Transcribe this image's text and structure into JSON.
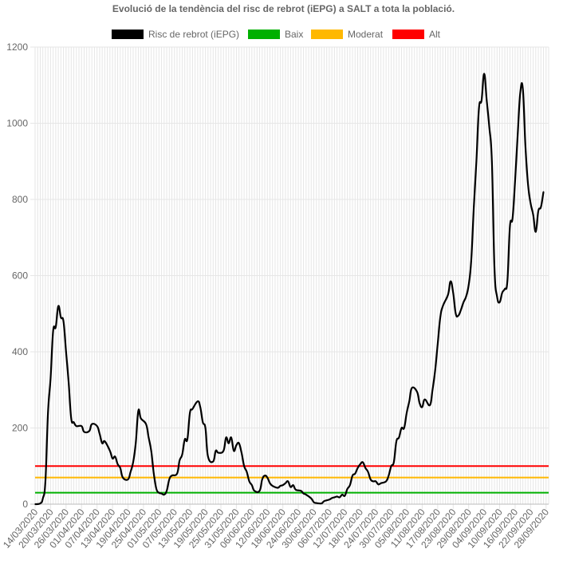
{
  "chart_data": {
    "type": "line",
    "title": "Evolució de la tendència del risc de rebrot (iEPG) a SALT a tota la població.",
    "xlabel": "",
    "ylabel": "",
    "ylim": [
      0,
      1200
    ],
    "yticks": [
      0,
      200,
      400,
      600,
      800,
      1000,
      1200
    ],
    "grid": true,
    "legend_position": "top",
    "start_date": "2020-03-14",
    "x_tick_labels": [
      "14/03/2020",
      "20/03/2020",
      "26/03/2020",
      "01/04/2020",
      "07/04/2020",
      "13/04/2020",
      "19/04/2020",
      "25/04/2020",
      "01/05/2020",
      "07/05/2020",
      "13/05/2020",
      "19/05/2020",
      "25/05/2020",
      "31/05/2020",
      "06/06/2020",
      "12/06/2020",
      "18/06/2020",
      "24/06/2020",
      "30/06/2020",
      "06/07/2020",
      "12/07/2020",
      "18/07/2020",
      "24/07/2020",
      "30/07/2020",
      "05/08/2020",
      "11/08/2020",
      "17/08/2020",
      "23/08/2020",
      "29/08/2020",
      "04/09/2020",
      "10/09/2020",
      "16/09/2020",
      "22/09/2020",
      "28/09/2020"
    ],
    "series": [
      {
        "name": "Risc de rebrot (iEPG)",
        "color": "#000000",
        "points": [
          [
            "2020-03-14",
            0
          ],
          [
            "2020-03-16",
            2
          ],
          [
            "2020-03-17",
            15
          ],
          [
            "2020-03-18",
            60
          ],
          [
            "2020-03-19",
            240
          ],
          [
            "2020-03-20",
            330
          ],
          [
            "2020-03-21",
            455
          ],
          [
            "2020-03-22",
            465
          ],
          [
            "2020-03-23",
            520
          ],
          [
            "2020-03-24",
            490
          ],
          [
            "2020-03-25",
            480
          ],
          [
            "2020-03-26",
            400
          ],
          [
            "2020-03-27",
            320
          ],
          [
            "2020-03-28",
            225
          ],
          [
            "2020-03-29",
            215
          ],
          [
            "2020-03-30",
            205
          ],
          [
            "2020-04-01",
            205
          ],
          [
            "2020-04-02",
            190
          ],
          [
            "2020-04-04",
            192
          ],
          [
            "2020-04-05",
            210
          ],
          [
            "2020-04-07",
            205
          ],
          [
            "2020-04-08",
            185
          ],
          [
            "2020-04-09",
            160
          ],
          [
            "2020-04-10",
            165
          ],
          [
            "2020-04-12",
            140
          ],
          [
            "2020-04-13",
            120
          ],
          [
            "2020-04-14",
            125
          ],
          [
            "2020-04-15",
            105
          ],
          [
            "2020-04-16",
            95
          ],
          [
            "2020-04-17",
            70
          ],
          [
            "2020-04-19",
            65
          ],
          [
            "2020-04-20",
            85
          ],
          [
            "2020-04-21",
            110
          ],
          [
            "2020-04-22",
            160
          ],
          [
            "2020-04-23",
            245
          ],
          [
            "2020-04-24",
            225
          ],
          [
            "2020-04-26",
            210
          ],
          [
            "2020-04-27",
            175
          ],
          [
            "2020-04-28",
            140
          ],
          [
            "2020-04-29",
            80
          ],
          [
            "2020-04-30",
            40
          ],
          [
            "2020-05-01",
            30
          ],
          [
            "2020-05-02",
            28
          ],
          [
            "2020-05-03",
            25
          ],
          [
            "2020-05-04",
            35
          ],
          [
            "2020-05-05",
            65
          ],
          [
            "2020-05-06",
            75
          ],
          [
            "2020-05-08",
            80
          ],
          [
            "2020-05-09",
            115
          ],
          [
            "2020-05-10",
            130
          ],
          [
            "2020-05-11",
            170
          ],
          [
            "2020-05-12",
            170
          ],
          [
            "2020-05-13",
            240
          ],
          [
            "2020-05-14",
            250
          ],
          [
            "2020-05-16",
            270
          ],
          [
            "2020-05-17",
            255
          ],
          [
            "2020-05-18",
            215
          ],
          [
            "2020-05-19",
            200
          ],
          [
            "2020-05-20",
            125
          ],
          [
            "2020-05-22",
            112
          ],
          [
            "2020-05-23",
            140
          ],
          [
            "2020-05-24",
            135
          ],
          [
            "2020-05-26",
            140
          ],
          [
            "2020-05-27",
            175
          ],
          [
            "2020-05-28",
            160
          ],
          [
            "2020-05-29",
            175
          ],
          [
            "2020-05-30",
            140
          ],
          [
            "2020-05-31",
            155
          ],
          [
            "2020-06-01",
            160
          ],
          [
            "2020-06-02",
            135
          ],
          [
            "2020-06-03",
            100
          ],
          [
            "2020-06-04",
            85
          ],
          [
            "2020-06-05",
            60
          ],
          [
            "2020-06-06",
            50
          ],
          [
            "2020-06-07",
            35
          ],
          [
            "2020-06-09",
            35
          ],
          [
            "2020-06-10",
            65
          ],
          [
            "2020-06-11",
            75
          ],
          [
            "2020-06-12",
            70
          ],
          [
            "2020-06-13",
            55
          ],
          [
            "2020-06-14",
            48
          ],
          [
            "2020-06-16",
            43
          ],
          [
            "2020-06-17",
            48
          ],
          [
            "2020-06-18",
            50
          ],
          [
            "2020-06-19",
            55
          ],
          [
            "2020-06-20",
            60
          ],
          [
            "2020-06-21",
            45
          ],
          [
            "2020-06-22",
            50
          ],
          [
            "2020-06-23",
            38
          ],
          [
            "2020-06-25",
            35
          ],
          [
            "2020-06-26",
            28
          ],
          [
            "2020-06-27",
            25
          ],
          [
            "2020-06-29",
            15
          ],
          [
            "2020-06-30",
            5
          ],
          [
            "2020-07-01",
            3
          ],
          [
            "2020-07-03",
            2
          ],
          [
            "2020-07-04",
            8
          ],
          [
            "2020-07-06",
            12
          ],
          [
            "2020-07-07",
            16
          ],
          [
            "2020-07-08",
            18
          ],
          [
            "2020-07-09",
            20
          ],
          [
            "2020-07-10",
            18
          ],
          [
            "2020-07-11",
            25
          ],
          [
            "2020-07-12",
            22
          ],
          [
            "2020-07-13",
            40
          ],
          [
            "2020-07-14",
            50
          ],
          [
            "2020-07-15",
            75
          ],
          [
            "2020-07-16",
            80
          ],
          [
            "2020-07-17",
            95
          ],
          [
            "2020-07-18",
            105
          ],
          [
            "2020-07-19",
            110
          ],
          [
            "2020-07-20",
            95
          ],
          [
            "2020-07-21",
            85
          ],
          [
            "2020-07-22",
            65
          ],
          [
            "2020-07-23",
            60
          ],
          [
            "2020-07-24",
            60
          ],
          [
            "2020-07-25",
            52
          ],
          [
            "2020-07-26",
            55
          ],
          [
            "2020-07-28",
            60
          ],
          [
            "2020-07-29",
            75
          ],
          [
            "2020-07-30",
            100
          ],
          [
            "2020-07-31",
            110
          ],
          [
            "2020-08-01",
            165
          ],
          [
            "2020-08-02",
            175
          ],
          [
            "2020-08-03",
            200
          ],
          [
            "2020-08-04",
            200
          ],
          [
            "2020-08-05",
            240
          ],
          [
            "2020-08-06",
            270
          ],
          [
            "2020-08-07",
            305
          ],
          [
            "2020-08-09",
            295
          ],
          [
            "2020-08-10",
            265
          ],
          [
            "2020-08-11",
            255
          ],
          [
            "2020-08-12",
            275
          ],
          [
            "2020-08-14",
            260
          ],
          [
            "2020-08-15",
            300
          ],
          [
            "2020-08-16",
            350
          ],
          [
            "2020-08-17",
            420
          ],
          [
            "2020-08-18",
            490
          ],
          [
            "2020-08-19",
            520
          ],
          [
            "2020-08-21",
            550
          ],
          [
            "2020-08-22",
            585
          ],
          [
            "2020-08-23",
            555
          ],
          [
            "2020-08-24",
            500
          ],
          [
            "2020-08-25",
            495
          ],
          [
            "2020-08-26",
            510
          ],
          [
            "2020-08-27",
            530
          ],
          [
            "2020-08-28",
            545
          ],
          [
            "2020-08-29",
            575
          ],
          [
            "2020-08-30",
            640
          ],
          [
            "2020-08-31",
            780
          ],
          [
            "2020-09-01",
            900
          ],
          [
            "2020-09-02",
            1040
          ],
          [
            "2020-09-03",
            1060
          ],
          [
            "2020-09-04",
            1130
          ],
          [
            "2020-09-05",
            1060
          ],
          [
            "2020-09-06",
            990
          ],
          [
            "2020-09-07",
            900
          ],
          [
            "2020-09-08",
            620
          ],
          [
            "2020-09-09",
            545
          ],
          [
            "2020-09-10",
            530
          ],
          [
            "2020-09-11",
            555
          ],
          [
            "2020-09-12",
            565
          ],
          [
            "2020-09-13",
            585
          ],
          [
            "2020-09-14",
            730
          ],
          [
            "2020-09-15",
            750
          ],
          [
            "2020-09-16",
            850
          ],
          [
            "2020-09-17",
            970
          ],
          [
            "2020-09-18",
            1080
          ],
          [
            "2020-09-19",
            1090
          ],
          [
            "2020-09-20",
            940
          ],
          [
            "2020-09-21",
            840
          ],
          [
            "2020-09-22",
            790
          ],
          [
            "2020-09-23",
            760
          ],
          [
            "2020-09-24",
            715
          ],
          [
            "2020-09-25",
            770
          ],
          [
            "2020-09-26",
            780
          ],
          [
            "2020-09-27",
            820
          ]
        ]
      },
      {
        "name": "Baix",
        "color": "#00b000",
        "constant": 30
      },
      {
        "name": "Moderat",
        "color": "#ffb800",
        "constant": 70
      },
      {
        "name": "Alt",
        "color": "#ff0000",
        "constant": 100
      }
    ]
  }
}
